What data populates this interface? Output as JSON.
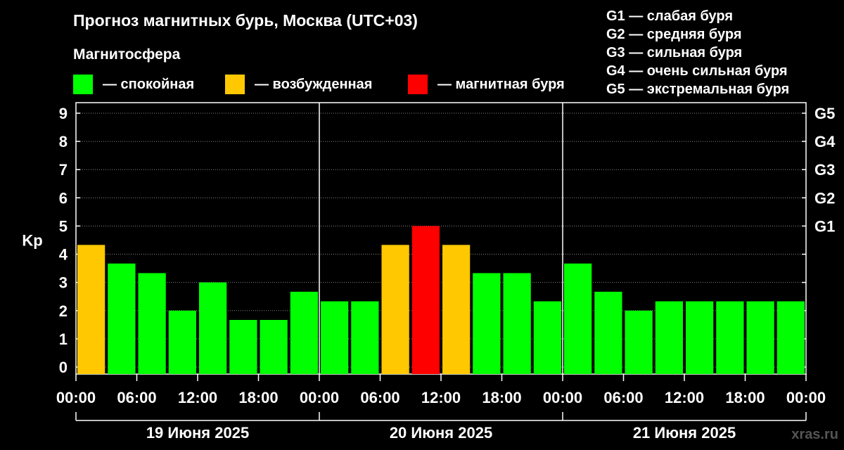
{
  "title": "Прогноз магнитных бурь, Москва (UTC+03)",
  "magnetosphere_label": "Магнитосфера",
  "legend": [
    {
      "label": "— спокойная",
      "color": "#00ff00"
    },
    {
      "label": "— возбужденная",
      "color": "#ffc800"
    },
    {
      "label": "— магнитная буря",
      "color": "#ff0000"
    }
  ],
  "g_legend": [
    "G1 — слабая буря",
    "G2 — средняя буря",
    "G3 — сильная буря",
    "G4 — очень сильная буря",
    "G5 — экстремальная буря"
  ],
  "watermark": "xras.ru",
  "chart_data": {
    "type": "bar",
    "ylabel": "Kp",
    "ylim": [
      0,
      9
    ],
    "y_ticks": [
      "0",
      "1",
      "2",
      "3",
      "4",
      "5",
      "6",
      "7",
      "8",
      "9"
    ],
    "right_ticks": [
      {
        "value": 5,
        "label": "G1"
      },
      {
        "value": 6,
        "label": "G2"
      },
      {
        "value": 7,
        "label": "G3"
      },
      {
        "value": 8,
        "label": "G4"
      },
      {
        "value": 9,
        "label": "G5"
      }
    ],
    "x_tick_labels": [
      "00:00",
      "06:00",
      "12:00",
      "18:00",
      "00:00",
      "06:00",
      "12:00",
      "18:00",
      "00:00",
      "06:00",
      "12:00",
      "18:00",
      "00:00"
    ],
    "days": [
      "19 Июня 2025",
      "20 Июня 2025",
      "21 Июня 2025"
    ],
    "values": [
      4.33,
      3.67,
      3.33,
      2.0,
      3.0,
      1.67,
      1.67,
      2.67,
      2.33,
      2.33,
      4.33,
      5.0,
      4.33,
      3.33,
      3.33,
      2.33,
      3.67,
      2.67,
      2.0,
      2.33,
      2.33,
      2.33,
      2.33,
      2.33
    ],
    "colors": {
      "quiet": "#00ff00",
      "active": "#ffc800",
      "storm": "#ff0000"
    },
    "grid": "horizontal"
  }
}
